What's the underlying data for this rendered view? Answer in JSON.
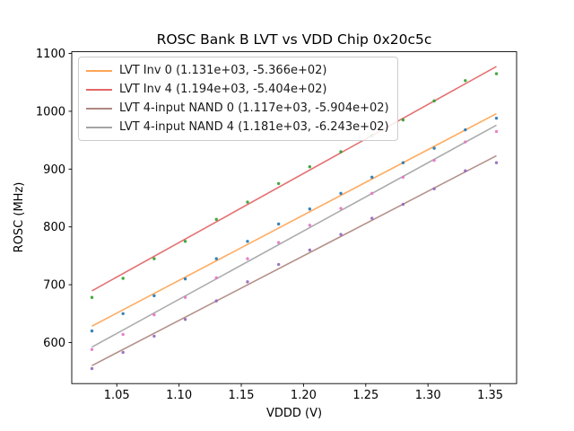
{
  "chart_data": {
    "type": "scatter",
    "title": "ROSC Bank B LVT vs VDD Chip 0x20c5c",
    "xlabel": "VDDD (V)",
    "ylabel": "ROSC (MHz)",
    "xlim": [
      1.0138,
      1.3712
    ],
    "ylim": [
      529,
      1103
    ],
    "grid": false,
    "legend_position": "upper left",
    "xticks": [
      1.05,
      1.1,
      1.15,
      1.2,
      1.25,
      1.3,
      1.35
    ],
    "xtick_labels": [
      "1.05",
      "1.10",
      "1.15",
      "1.20",
      "1.25",
      "1.30",
      "1.35"
    ],
    "yticks": [
      600,
      700,
      800,
      900,
      1000,
      1100
    ],
    "ytick_labels": [
      "600",
      "700",
      "800",
      "900",
      "1000",
      "1100"
    ],
    "x": [
      1.03,
      1.055,
      1.08,
      1.105,
      1.13,
      1.155,
      1.18,
      1.205,
      1.23,
      1.255,
      1.28,
      1.305,
      1.33,
      1.355
    ],
    "series": [
      {
        "name": "LVT Inv 0 (1.131e+03, -5.366e+02)",
        "fit": {
          "slope": 1131.0,
          "intercept": -536.6
        },
        "line_color": "#ff7f0e",
        "point_color": "#1f77b4",
        "points": [
          620,
          650,
          681,
          710,
          745,
          775,
          805,
          831,
          858,
          886,
          911,
          936,
          968,
          988
        ]
      },
      {
        "name": "LVT Inv 4 (1.194e+03, -5.404e+02)",
        "fit": {
          "slope": 1194.0,
          "intercept": -540.4
        },
        "line_color": "#d62728",
        "point_color": "#2ca02c",
        "points": [
          678,
          711,
          745,
          775,
          813,
          843,
          875,
          904,
          930,
          958,
          985,
          1018,
          1053,
          1065
        ]
      },
      {
        "name": "LVT 4-input NAND 0 (1.117e+03, -5.904e+02)",
        "fit": {
          "slope": 1117.0,
          "intercept": -590.4
        },
        "line_color": "#8c564b",
        "point_color": "#9467bd",
        "points": [
          555,
          583,
          611,
          640,
          672,
          705,
          735,
          760,
          787,
          815,
          839,
          866,
          897,
          911
        ]
      },
      {
        "name": "LVT 4-input NAND 4 (1.181e+03, -6.243e+02)",
        "fit": {
          "slope": 1181.0,
          "intercept": -624.3
        },
        "line_color": "#7f7f7f",
        "point_color": "#e377c2",
        "points": [
          588,
          614,
          648,
          678,
          712,
          745,
          773,
          803,
          832,
          858,
          886,
          915,
          947,
          965
        ]
      }
    ]
  }
}
